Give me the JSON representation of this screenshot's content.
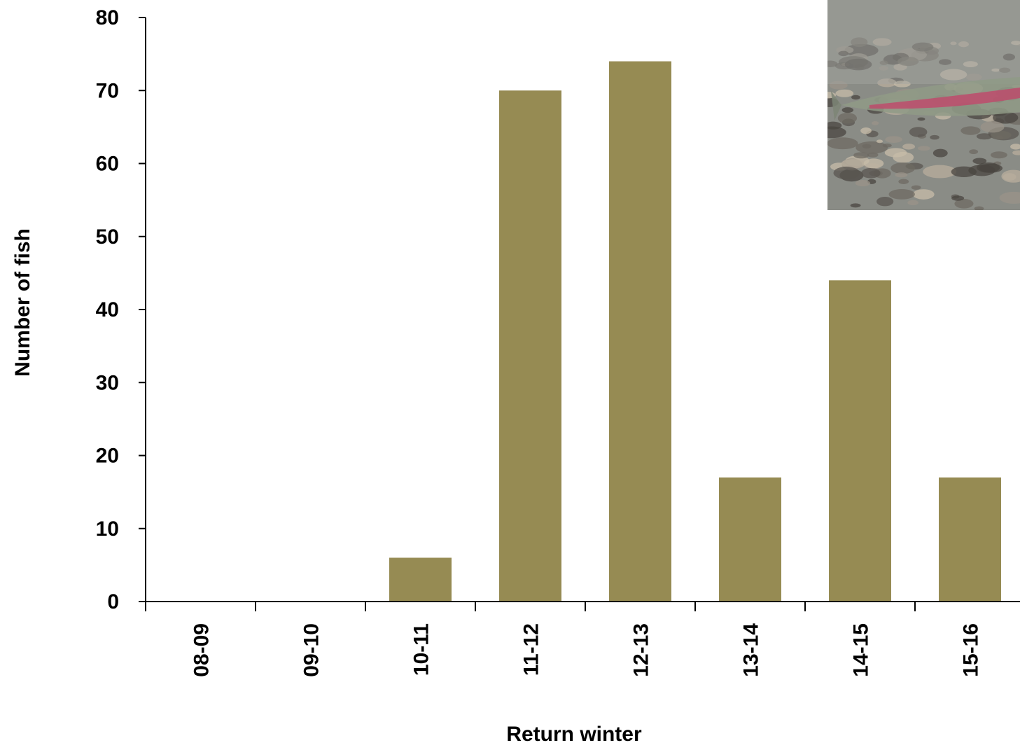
{
  "chart_data": {
    "type": "bar",
    "categories": [
      "08-09",
      "09-10",
      "10-11",
      "11-12",
      "12-13",
      "13-14",
      "14-15",
      "15-16"
    ],
    "values": [
      0,
      0,
      6,
      70,
      74,
      17,
      44,
      17
    ],
    "title": "",
    "xlabel": "Return winter",
    "ylabel": "Number of fish",
    "ylim": [
      0,
      80
    ],
    "yticks": [
      0,
      10,
      20,
      30,
      40,
      50,
      60,
      70,
      80
    ],
    "bar_color": "#968b53",
    "grid": false,
    "legend": "none"
  },
  "inset_photo": {
    "description_icon": "fish-photo",
    "colors": {
      "water": "#8a8c86",
      "stone_dark": "#4a4640",
      "stone_light": "#b8ad9c",
      "stripe": "#c0476a"
    }
  }
}
